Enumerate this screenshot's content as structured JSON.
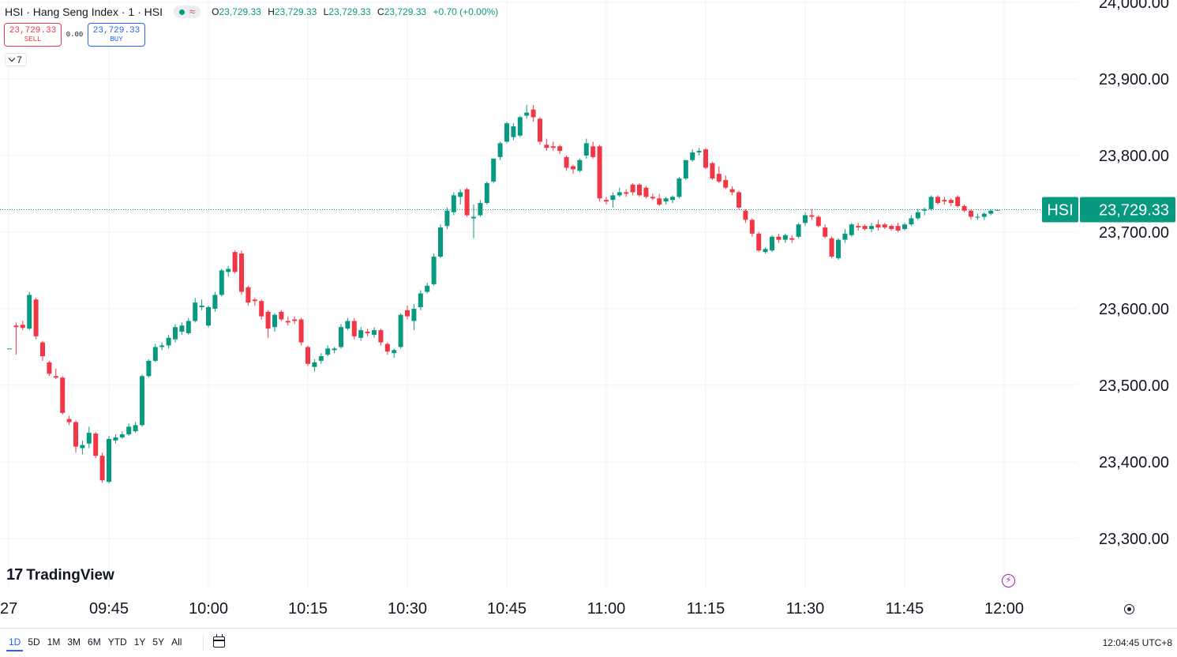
{
  "legend": {
    "title": "HSI · Hang Seng Index · 1 · HSI",
    "status_icon": "market-open-dot",
    "approx_icon": "≈",
    "ohlc": [
      {
        "key": "O",
        "value": "23,729.33"
      },
      {
        "key": "H",
        "value": "23,729.33"
      },
      {
        "key": "L",
        "value": "23,729.33"
      },
      {
        "key": "C",
        "value": "23,729.33"
      },
      {
        "key": "",
        "value": "+0.70 (+0.00%)"
      }
    ]
  },
  "trade": {
    "sell_price": "23,729.33",
    "sell_label": "SELL",
    "spread": "0.00",
    "buy_price": "23,729.33",
    "buy_label": "BUY"
  },
  "indicators_toggle": "7",
  "logo": {
    "mark": "17",
    "text": "TradingView"
  },
  "price_tag": {
    "symbol": "HSI",
    "price": "23,729.33"
  },
  "time_axis": {
    "ticks": [
      "27",
      "09:45",
      "10:00",
      "10:15",
      "10:30",
      "10:45",
      "11:00",
      "11:15",
      "11:30",
      "11:45",
      "12:00"
    ]
  },
  "price_axis": {
    "ticks": [
      "24,000.00",
      "23,900.00",
      "23,800.00",
      "23,700.00",
      "23,600.00",
      "23,500.00",
      "23,400.00",
      "23,300.00"
    ]
  },
  "bottom_bar": {
    "ranges": [
      "1D",
      "5D",
      "1M",
      "3M",
      "6M",
      "YTD",
      "1Y",
      "5Y",
      "All"
    ],
    "active_range": "1D",
    "clock": "12:04:45 UTC+8"
  },
  "colors": {
    "up": "#089981",
    "down": "#f23645",
    "accent": "#2962ff",
    "grid": "#f0f3fa"
  },
  "chart_data": {
    "type": "candlestick",
    "title": "HSI · Hang Seng Index · 1 · HSI",
    "interval_minutes": 1,
    "ylim": [
      23235,
      24003
    ],
    "grid": true,
    "last_price": 23729.33,
    "x_ticks": [
      "27",
      "09:45",
      "10:00",
      "10:15",
      "10:30",
      "10:45",
      "11:00",
      "11:15",
      "11:30",
      "11:45",
      "12:00"
    ],
    "y_ticks": [
      24000,
      23900,
      23800,
      23700,
      23600,
      23500,
      23400,
      23300
    ],
    "candles": [
      {
        "t": "09:30",
        "o": 23548,
        "h": 23548,
        "l": 23548,
        "c": 23548
      },
      {
        "t": "09:31",
        "o": 23578,
        "h": 23582,
        "l": 23540,
        "c": 23576
      },
      {
        "t": "09:32",
        "o": 23579,
        "h": 23584,
        "l": 23572,
        "c": 23575
      },
      {
        "t": "09:33",
        "o": 23574,
        "h": 23622,
        "l": 23572,
        "c": 23618
      },
      {
        "t": "09:34",
        "o": 23612,
        "h": 23614,
        "l": 23560,
        "c": 23564
      },
      {
        "t": "09:35",
        "o": 23556,
        "h": 23558,
        "l": 23532,
        "c": 23538
      },
      {
        "t": "09:36",
        "o": 23530,
        "h": 23532,
        "l": 23512,
        "c": 23515
      },
      {
        "t": "09:37",
        "o": 23512,
        "h": 23522,
        "l": 23508,
        "c": 23510
      },
      {
        "t": "09:38",
        "o": 23510,
        "h": 23512,
        "l": 23462,
        "c": 23464
      },
      {
        "t": "09:39",
        "o": 23456,
        "h": 23460,
        "l": 23448,
        "c": 23452
      },
      {
        "t": "09:40",
        "o": 23452,
        "h": 23454,
        "l": 23412,
        "c": 23420
      },
      {
        "t": "09:41",
        "o": 23418,
        "h": 23428,
        "l": 23410,
        "c": 23422
      },
      {
        "t": "09:42",
        "o": 23424,
        "h": 23446,
        "l": 23418,
        "c": 23438
      },
      {
        "t": "09:43",
        "o": 23437,
        "h": 23439,
        "l": 23405,
        "c": 23408
      },
      {
        "t": "09:44",
        "o": 23408,
        "h": 23412,
        "l": 23373,
        "c": 23376
      },
      {
        "t": "09:45",
        "o": 23374,
        "h": 23434,
        "l": 23372,
        "c": 23430
      },
      {
        "t": "09:46",
        "o": 23428,
        "h": 23436,
        "l": 23424,
        "c": 23432
      },
      {
        "t": "09:47",
        "o": 23432,
        "h": 23440,
        "l": 23430,
        "c": 23436
      },
      {
        "t": "09:48",
        "o": 23436,
        "h": 23450,
        "l": 23434,
        "c": 23446
      },
      {
        "t": "09:49",
        "o": 23440,
        "h": 23452,
        "l": 23438,
        "c": 23448
      },
      {
        "t": "09:50",
        "o": 23448,
        "h": 23514,
        "l": 23446,
        "c": 23512
      },
      {
        "t": "09:51",
        "o": 23512,
        "h": 23534,
        "l": 23510,
        "c": 23532
      },
      {
        "t": "09:52",
        "o": 23532,
        "h": 23554,
        "l": 23530,
        "c": 23550
      },
      {
        "t": "09:53",
        "o": 23550,
        "h": 23556,
        "l": 23546,
        "c": 23552
      },
      {
        "t": "09:54",
        "o": 23552,
        "h": 23566,
        "l": 23548,
        "c": 23562
      },
      {
        "t": "09:55",
        "o": 23560,
        "h": 23580,
        "l": 23556,
        "c": 23576
      },
      {
        "t": "09:56",
        "o": 23570,
        "h": 23582,
        "l": 23566,
        "c": 23578
      },
      {
        "t": "09:57",
        "o": 23568,
        "h": 23588,
        "l": 23566,
        "c": 23584
      },
      {
        "t": "09:58",
        "o": 23584,
        "h": 23614,
        "l": 23582,
        "c": 23608
      },
      {
        "t": "09:59",
        "o": 23602,
        "h": 23612,
        "l": 23598,
        "c": 23604
      },
      {
        "t": "10:00",
        "o": 23578,
        "h": 23604,
        "l": 23576,
        "c": 23602
      },
      {
        "t": "10:01",
        "o": 23600,
        "h": 23622,
        "l": 23596,
        "c": 23618
      },
      {
        "t": "10:02",
        "o": 23618,
        "h": 23652,
        "l": 23616,
        "c": 23650
      },
      {
        "t": "10:03",
        "o": 23648,
        "h": 23656,
        "l": 23642,
        "c": 23652
      },
      {
        "t": "10:04",
        "o": 23674,
        "h": 23676,
        "l": 23646,
        "c": 23648
      },
      {
        "t": "10:05",
        "o": 23672,
        "h": 23676,
        "l": 23618,
        "c": 23622
      },
      {
        "t": "10:06",
        "o": 23628,
        "h": 23630,
        "l": 23604,
        "c": 23608
      },
      {
        "t": "10:07",
        "o": 23612,
        "h": 23614,
        "l": 23604,
        "c": 23610
      },
      {
        "t": "10:08",
        "o": 23610,
        "h": 23612,
        "l": 23586,
        "c": 23590
      },
      {
        "t": "10:09",
        "o": 23596,
        "h": 23598,
        "l": 23562,
        "c": 23574
      },
      {
        "t": "10:10",
        "o": 23576,
        "h": 23594,
        "l": 23570,
        "c": 23592
      },
      {
        "t": "10:11",
        "o": 23596,
        "h": 23598,
        "l": 23584,
        "c": 23586
      },
      {
        "t": "10:12",
        "o": 23584,
        "h": 23590,
        "l": 23578,
        "c": 23582
      },
      {
        "t": "10:13",
        "o": 23586,
        "h": 23590,
        "l": 23580,
        "c": 23584
      },
      {
        "t": "10:14",
        "o": 23586,
        "h": 23588,
        "l": 23552,
        "c": 23556
      },
      {
        "t": "10:15",
        "o": 23550,
        "h": 23552,
        "l": 23525,
        "c": 23528
      },
      {
        "t": "10:16",
        "o": 23524,
        "h": 23534,
        "l": 23518,
        "c": 23530
      },
      {
        "t": "10:17",
        "o": 23532,
        "h": 23542,
        "l": 23528,
        "c": 23538
      },
      {
        "t": "10:18",
        "o": 23540,
        "h": 23552,
        "l": 23538,
        "c": 23548
      },
      {
        "t": "10:19",
        "o": 23546,
        "h": 23550,
        "l": 23542,
        "c": 23548
      },
      {
        "t": "10:20",
        "o": 23550,
        "h": 23580,
        "l": 23548,
        "c": 23576
      },
      {
        "t": "10:21",
        "o": 23574,
        "h": 23588,
        "l": 23572,
        "c": 23584
      },
      {
        "t": "10:22",
        "o": 23584,
        "h": 23588,
        "l": 23560,
        "c": 23564
      },
      {
        "t": "10:23",
        "o": 23562,
        "h": 23576,
        "l": 23558,
        "c": 23572
      },
      {
        "t": "10:24",
        "o": 23570,
        "h": 23574,
        "l": 23564,
        "c": 23568
      },
      {
        "t": "10:25",
        "o": 23566,
        "h": 23576,
        "l": 23562,
        "c": 23572
      },
      {
        "t": "10:26",
        "o": 23572,
        "h": 23574,
        "l": 23552,
        "c": 23556
      },
      {
        "t": "10:27",
        "o": 23554,
        "h": 23556,
        "l": 23540,
        "c": 23544
      },
      {
        "t": "10:28",
        "o": 23542,
        "h": 23548,
        "l": 23536,
        "c": 23546
      },
      {
        "t": "10:29",
        "o": 23550,
        "h": 23594,
        "l": 23548,
        "c": 23592
      },
      {
        "t": "10:30",
        "o": 23598,
        "h": 23604,
        "l": 23586,
        "c": 23590
      },
      {
        "t": "10:31",
        "o": 23584,
        "h": 23606,
        "l": 23572,
        "c": 23600
      },
      {
        "t": "10:32",
        "o": 23602,
        "h": 23624,
        "l": 23598,
        "c": 23620
      },
      {
        "t": "10:33",
        "o": 23622,
        "h": 23634,
        "l": 23620,
        "c": 23630
      },
      {
        "t": "10:34",
        "o": 23632,
        "h": 23672,
        "l": 23630,
        "c": 23668
      },
      {
        "t": "10:35",
        "o": 23668,
        "h": 23710,
        "l": 23666,
        "c": 23706
      },
      {
        "t": "10:36",
        "o": 23708,
        "h": 23732,
        "l": 23704,
        "c": 23728
      },
      {
        "t": "10:37",
        "o": 23726,
        "h": 23752,
        "l": 23722,
        "c": 23748
      },
      {
        "t": "10:38",
        "o": 23746,
        "h": 23756,
        "l": 23736,
        "c": 23752
      },
      {
        "t": "10:39",
        "o": 23756,
        "h": 23758,
        "l": 23720,
        "c": 23722
      },
      {
        "t": "10:40",
        "o": 23718,
        "h": 23736,
        "l": 23692,
        "c": 23720
      },
      {
        "t": "10:41",
        "o": 23722,
        "h": 23742,
        "l": 23720,
        "c": 23738
      },
      {
        "t": "10:42",
        "o": 23738,
        "h": 23766,
        "l": 23736,
        "c": 23764
      },
      {
        "t": "10:43",
        "o": 23766,
        "h": 23796,
        "l": 23764,
        "c": 23796
      },
      {
        "t": "10:44",
        "o": 23798,
        "h": 23818,
        "l": 23794,
        "c": 23816
      },
      {
        "t": "10:45",
        "o": 23818,
        "h": 23844,
        "l": 23816,
        "c": 23842
      },
      {
        "t": "10:46",
        "o": 23824,
        "h": 23842,
        "l": 23820,
        "c": 23838
      },
      {
        "t": "10:47",
        "o": 23826,
        "h": 23852,
        "l": 23824,
        "c": 23850
      },
      {
        "t": "10:48",
        "o": 23852,
        "h": 23866,
        "l": 23848,
        "c": 23856
      },
      {
        "t": "10:49",
        "o": 23860,
        "h": 23866,
        "l": 23844,
        "c": 23850
      },
      {
        "t": "10:50",
        "o": 23848,
        "h": 23850,
        "l": 23814,
        "c": 23818
      },
      {
        "t": "10:51",
        "o": 23814,
        "h": 23822,
        "l": 23806,
        "c": 23810
      },
      {
        "t": "10:52",
        "o": 23812,
        "h": 23818,
        "l": 23806,
        "c": 23810
      },
      {
        "t": "10:53",
        "o": 23812,
        "h": 23814,
        "l": 23802,
        "c": 23806
      },
      {
        "t": "10:54",
        "o": 23798,
        "h": 23800,
        "l": 23780,
        "c": 23784
      },
      {
        "t": "10:55",
        "o": 23786,
        "h": 23788,
        "l": 23776,
        "c": 23782
      },
      {
        "t": "10:56",
        "o": 23780,
        "h": 23796,
        "l": 23778,
        "c": 23794
      },
      {
        "t": "10:57",
        "o": 23800,
        "h": 23822,
        "l": 23796,
        "c": 23816
      },
      {
        "t": "10:58",
        "o": 23812,
        "h": 23818,
        "l": 23796,
        "c": 23798
      },
      {
        "t": "10:59",
        "o": 23812,
        "h": 23814,
        "l": 23740,
        "c": 23744
      },
      {
        "t": "11:00",
        "o": 23742,
        "h": 23746,
        "l": 23736,
        "c": 23740
      },
      {
        "t": "11:01",
        "o": 23742,
        "h": 23752,
        "l": 23732,
        "c": 23748
      },
      {
        "t": "11:02",
        "o": 23748,
        "h": 23758,
        "l": 23746,
        "c": 23752
      },
      {
        "t": "11:03",
        "o": 23752,
        "h": 23756,
        "l": 23746,
        "c": 23750
      },
      {
        "t": "11:04",
        "o": 23762,
        "h": 23764,
        "l": 23748,
        "c": 23752
      },
      {
        "t": "11:05",
        "o": 23762,
        "h": 23764,
        "l": 23746,
        "c": 23748
      },
      {
        "t": "11:06",
        "o": 23758,
        "h": 23760,
        "l": 23744,
        "c": 23746
      },
      {
        "t": "11:07",
        "o": 23746,
        "h": 23750,
        "l": 23742,
        "c": 23744
      },
      {
        "t": "11:08",
        "o": 23744,
        "h": 23750,
        "l": 23734,
        "c": 23736
      },
      {
        "t": "11:09",
        "o": 23740,
        "h": 23746,
        "l": 23736,
        "c": 23744
      },
      {
        "t": "11:10",
        "o": 23742,
        "h": 23748,
        "l": 23738,
        "c": 23746
      },
      {
        "t": "11:11",
        "o": 23746,
        "h": 23772,
        "l": 23744,
        "c": 23770
      },
      {
        "t": "11:12",
        "o": 23770,
        "h": 23794,
        "l": 23768,
        "c": 23794
      },
      {
        "t": "11:13",
        "o": 23794,
        "h": 23808,
        "l": 23792,
        "c": 23804
      },
      {
        "t": "11:14",
        "o": 23804,
        "h": 23810,
        "l": 23800,
        "c": 23806
      },
      {
        "t": "11:15",
        "o": 23808,
        "h": 23810,
        "l": 23782,
        "c": 23784
      },
      {
        "t": "11:16",
        "o": 23790,
        "h": 23792,
        "l": 23768,
        "c": 23770
      },
      {
        "t": "11:17",
        "o": 23776,
        "h": 23786,
        "l": 23764,
        "c": 23766
      },
      {
        "t": "11:18",
        "o": 23768,
        "h": 23774,
        "l": 23756,
        "c": 23758
      },
      {
        "t": "11:19",
        "o": 23756,
        "h": 23760,
        "l": 23748,
        "c": 23752
      },
      {
        "t": "11:20",
        "o": 23752,
        "h": 23754,
        "l": 23730,
        "c": 23732
      },
      {
        "t": "11:21",
        "o": 23728,
        "h": 23730,
        "l": 23712,
        "c": 23716
      },
      {
        "t": "11:22",
        "o": 23716,
        "h": 23718,
        "l": 23694,
        "c": 23698
      },
      {
        "t": "11:23",
        "o": 23698,
        "h": 23700,
        "l": 23674,
        "c": 23676
      },
      {
        "t": "11:24",
        "o": 23674,
        "h": 23680,
        "l": 23672,
        "c": 23678
      },
      {
        "t": "11:25",
        "o": 23676,
        "h": 23696,
        "l": 23674,
        "c": 23694
      },
      {
        "t": "11:26",
        "o": 23694,
        "h": 23698,
        "l": 23686,
        "c": 23690
      },
      {
        "t": "11:27",
        "o": 23690,
        "h": 23698,
        "l": 23686,
        "c": 23696
      },
      {
        "t": "11:28",
        "o": 23692,
        "h": 23696,
        "l": 23686,
        "c": 23690
      },
      {
        "t": "11:29",
        "o": 23694,
        "h": 23712,
        "l": 23692,
        "c": 23710
      },
      {
        "t": "11:30",
        "o": 23712,
        "h": 23726,
        "l": 23708,
        "c": 23722
      },
      {
        "t": "11:31",
        "o": 23722,
        "h": 23730,
        "l": 23716,
        "c": 23720
      },
      {
        "t": "11:32",
        "o": 23720,
        "h": 23722,
        "l": 23706,
        "c": 23708
      },
      {
        "t": "11:33",
        "o": 23706,
        "h": 23710,
        "l": 23692,
        "c": 23694
      },
      {
        "t": "11:34",
        "o": 23692,
        "h": 23694,
        "l": 23666,
        "c": 23668
      },
      {
        "t": "11:35",
        "o": 23666,
        "h": 23692,
        "l": 23664,
        "c": 23690
      },
      {
        "t": "11:36",
        "o": 23690,
        "h": 23704,
        "l": 23686,
        "c": 23698
      },
      {
        "t": "11:37",
        "o": 23696,
        "h": 23712,
        "l": 23694,
        "c": 23710
      },
      {
        "t": "11:38",
        "o": 23708,
        "h": 23712,
        "l": 23702,
        "c": 23706
      },
      {
        "t": "11:39",
        "o": 23708,
        "h": 23710,
        "l": 23702,
        "c": 23704
      },
      {
        "t": "11:40",
        "o": 23704,
        "h": 23712,
        "l": 23700,
        "c": 23708
      },
      {
        "t": "11:41",
        "o": 23710,
        "h": 23716,
        "l": 23702,
        "c": 23706
      },
      {
        "t": "11:42",
        "o": 23710,
        "h": 23712,
        "l": 23704,
        "c": 23706
      },
      {
        "t": "11:43",
        "o": 23708,
        "h": 23710,
        "l": 23702,
        "c": 23704
      },
      {
        "t": "11:44",
        "o": 23708,
        "h": 23712,
        "l": 23700,
        "c": 23702
      },
      {
        "t": "11:45",
        "o": 23704,
        "h": 23712,
        "l": 23702,
        "c": 23710
      },
      {
        "t": "11:46",
        "o": 23710,
        "h": 23722,
        "l": 23708,
        "c": 23718
      },
      {
        "t": "11:47",
        "o": 23718,
        "h": 23730,
        "l": 23716,
        "c": 23726
      },
      {
        "t": "11:48",
        "o": 23728,
        "h": 23732,
        "l": 23722,
        "c": 23730
      },
      {
        "t": "11:49",
        "o": 23730,
        "h": 23748,
        "l": 23728,
        "c": 23746
      },
      {
        "t": "11:50",
        "o": 23746,
        "h": 23748,
        "l": 23736,
        "c": 23738
      },
      {
        "t": "11:51",
        "o": 23742,
        "h": 23746,
        "l": 23736,
        "c": 23740
      },
      {
        "t": "11:52",
        "o": 23742,
        "h": 23744,
        "l": 23734,
        "c": 23738
      },
      {
        "t": "11:53",
        "o": 23746,
        "h": 23748,
        "l": 23732,
        "c": 23734
      },
      {
        "t": "11:54",
        "o": 23734,
        "h": 23736,
        "l": 23726,
        "c": 23728
      },
      {
        "t": "11:55",
        "o": 23728,
        "h": 23730,
        "l": 23716,
        "c": 23720
      },
      {
        "t": "11:56",
        "o": 23720,
        "h": 23724,
        "l": 23716,
        "c": 23720
      },
      {
        "t": "11:57",
        "o": 23720,
        "h": 23726,
        "l": 23716,
        "c": 23724
      },
      {
        "t": "11:58",
        "o": 23724,
        "h": 23730,
        "l": 23722,
        "c": 23728
      },
      {
        "t": "11:59",
        "o": 23728,
        "h": 23730,
        "l": 23728,
        "c": 23729
      }
    ]
  }
}
